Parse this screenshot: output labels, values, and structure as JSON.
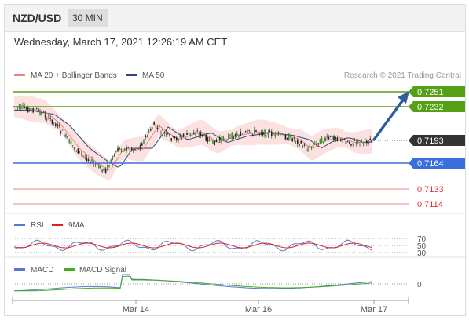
{
  "header": {
    "pair": "NZD/USD",
    "timeframe": "30 MIN"
  },
  "date_line": "Wednesday, March 17, 2021 12:26:19 AM CET",
  "legend_main": [
    {
      "label": "MA 20 + Bollinger Bands",
      "color": "#f08080"
    },
    {
      "label": "MA 50",
      "color": "#2e4a7a"
    }
  ],
  "credit": "Research © 2021 Trading Central",
  "legend_rsi": [
    {
      "label": "RSI",
      "color": "#5577cc"
    },
    {
      "label": "9MA",
      "color": "#dd2222"
    }
  ],
  "legend_macd": [
    {
      "label": "MACD",
      "color": "#5577cc"
    },
    {
      "label": "MACD Signal",
      "color": "#44aa22"
    }
  ],
  "price_levels": [
    {
      "label": "0.7251",
      "kind": "resistance",
      "color": "#55a014"
    },
    {
      "label": "0.7232",
      "kind": "resistance",
      "color": "#55a014"
    },
    {
      "label": "0.7193",
      "kind": "current",
      "color": "#333333"
    },
    {
      "label": "0.7164",
      "kind": "pivot",
      "color": "#3a6fe0"
    },
    {
      "label": "0.7133",
      "kind": "support",
      "color": "#dd3333"
    },
    {
      "label": "0.7114",
      "kind": "support",
      "color": "#dd3333"
    }
  ],
  "rsi_ticks": [
    "70",
    "50",
    "30"
  ],
  "macd_ticks": [
    "0"
  ],
  "x_labels": [
    "Mar 14",
    "Mar 16",
    "Mar 17"
  ]
}
